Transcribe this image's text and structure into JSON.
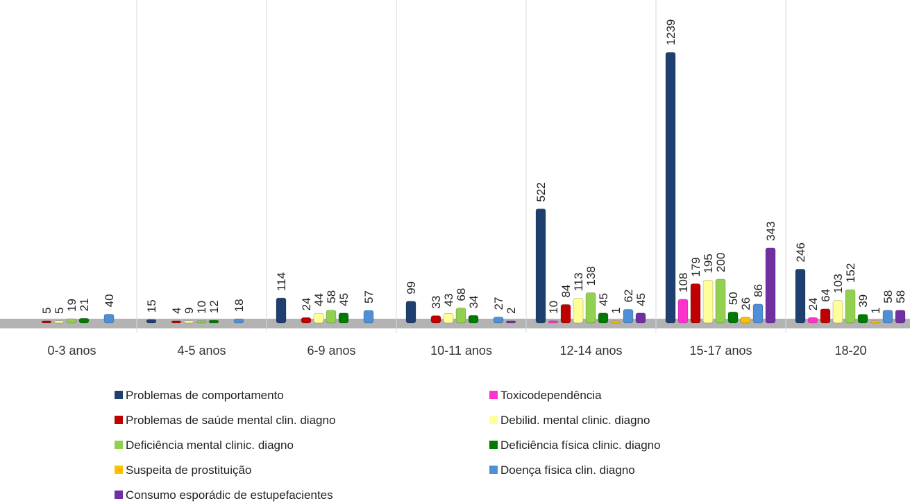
{
  "chart_data": {
    "type": "bar",
    "categories": [
      "0-3 anos",
      "4-5 anos",
      "6-9 anos",
      "10-11 anos",
      "12-14 anos",
      "15-17 anos",
      "18-20"
    ],
    "ylim": [
      0,
      1250
    ],
    "series": [
      {
        "name": "Problemas de comportamento",
        "color": "#1f3f6e",
        "values": [
          null,
          15,
          114,
          99,
          522,
          1239,
          246
        ]
      },
      {
        "name": "Toxicodependência",
        "color": "#ff33cc",
        "values": [
          null,
          null,
          null,
          null,
          10,
          108,
          24
        ]
      },
      {
        "name": "Problemas de saúde mental clin. diagno",
        "color": "#c00000",
        "values": [
          5,
          4,
          24,
          33,
          84,
          179,
          64
        ]
      },
      {
        "name": "Debilid. mental clinic. diagno",
        "color": "#ffff99",
        "values": [
          5,
          9,
          44,
          43,
          113,
          195,
          103
        ]
      },
      {
        "name": "Deficiência mental clinic. diagno",
        "color": "#92d050",
        "values": [
          19,
          10,
          58,
          68,
          138,
          200,
          152
        ]
      },
      {
        "name": "Deficiência física clinic. diagno",
        "color": "#007a00",
        "values": [
          21,
          12,
          45,
          34,
          45,
          50,
          39
        ]
      },
      {
        "name": "Suspeita de prostituição",
        "color": "#ffc000",
        "values": [
          null,
          null,
          null,
          null,
          1,
          26,
          1
        ]
      },
      {
        "name": "Doença física clin. diagno",
        "color": "#4f8fd6",
        "values": [
          40,
          18,
          57,
          27,
          62,
          86,
          58
        ]
      },
      {
        "name": "Consumo esporádic de estupefacientes",
        "color": "#7030a0",
        "values": [
          null,
          null,
          null,
          2,
          45,
          343,
          58
        ]
      }
    ]
  }
}
